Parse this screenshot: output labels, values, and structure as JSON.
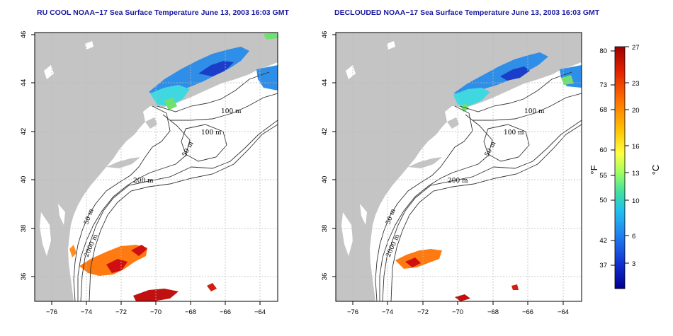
{
  "panels": [
    {
      "title": "RU COOL NOAA−17 Sea Surface Temperature June 13, 2003 16:03 GMT",
      "x_ticks": [
        "−76",
        "−74",
        "−72",
        "−70",
        "−68",
        "−66",
        "−64"
      ],
      "y_ticks": [
        "36",
        "38",
        "40",
        "42",
        "44",
        "46"
      ],
      "contour_labels": [
        "100 m",
        "100 m",
        "50 m",
        "200 m",
        "50 m",
        "2000 m"
      ]
    },
    {
      "title": "DECLOUDED NOAA−17 Sea Surface Temperature June 13, 2003 16:03 GMT",
      "x_ticks": [
        "−76",
        "−74",
        "−72",
        "−70",
        "−68",
        "−66",
        "−64"
      ],
      "y_ticks": [
        "36",
        "38",
        "40",
        "42",
        "44",
        "46"
      ],
      "contour_labels": [
        "100 m",
        "100 m",
        "50 m",
        "200 m",
        "50 m",
        "2000 m"
      ]
    }
  ],
  "colorbar": {
    "fahrenheit_ticks": [
      "80",
      "73",
      "68",
      "60",
      "55",
      "50",
      "42",
      "37"
    ],
    "celsius_ticks": [
      "27",
      "23",
      "20",
      "16",
      "13",
      "10",
      "6",
      "3"
    ],
    "fahrenheit_unit": "°F",
    "celsius_unit": "°C",
    "colors": [
      "#a00000",
      "#e02000",
      "#ff7000",
      "#ffc000",
      "#ffff40",
      "#a0ff60",
      "#40e0a0",
      "#20c0f0",
      "#2080f0",
      "#1030d0",
      "#000090"
    ]
  },
  "colors": {
    "land": "#c4c4c4",
    "ocean": "#ffffff",
    "title": "#1a1aa0",
    "contour": "#333333"
  }
}
